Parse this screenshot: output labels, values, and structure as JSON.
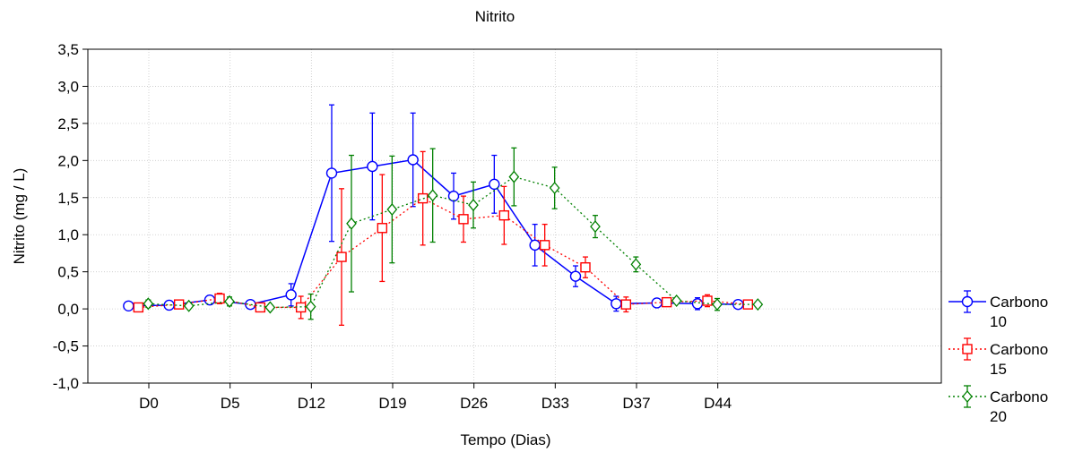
{
  "chart_data": {
    "type": "line",
    "title": "Nitrito",
    "xlabel": "Tempo (Dias)",
    "ylabel": "Nitrito (mg / L)",
    "ylim": [
      -1.0,
      3.5
    ],
    "yticks": [
      "-1,0",
      "-0,5",
      "0,0",
      "0,5",
      "1,0",
      "1,5",
      "2,0",
      "2,5",
      "3,0",
      "3,5"
    ],
    "ytick_values": [
      -1.0,
      -0.5,
      0.0,
      0.5,
      1.0,
      1.5,
      2.0,
      2.5,
      3.0,
      3.5
    ],
    "x_positions": [
      1,
      2,
      3,
      4,
      5,
      6,
      7,
      8,
      9,
      10,
      11,
      12,
      13,
      14,
      15,
      16,
      17,
      18,
      19,
      20
    ],
    "xlim": [
      0,
      21
    ],
    "xtick_labels": [
      "D0",
      "D5",
      "D12",
      "D19",
      "D26",
      "D33",
      "D37",
      "D44"
    ],
    "xtick_positions": [
      1.5,
      3.5,
      5.5,
      7.5,
      9.5,
      11.5,
      13.5,
      15.5
    ],
    "grid": true,
    "legend_position": "right",
    "series": [
      {
        "name": "Carbono\n10",
        "color": "#0000ff",
        "marker": "circle",
        "dash": "solid",
        "x": [
          1,
          2,
          3,
          4,
          5,
          6,
          7,
          8,
          9,
          10,
          11,
          12,
          13,
          14,
          15,
          16,
          17,
          18
        ],
        "y": [
          0.04,
          0.05,
          0.12,
          0.06,
          0.19,
          1.83,
          1.92,
          2.01,
          1.52,
          1.68,
          0.86,
          0.44,
          0.07,
          0.08,
          0.07,
          0.06,
          null,
          null
        ],
        "err": [
          0.02,
          0.02,
          0.06,
          0.02,
          0.15,
          0.92,
          0.72,
          0.63,
          0.31,
          0.39,
          0.28,
          0.14,
          0.1,
          0.02,
          0.08,
          0.03,
          null,
          null
        ]
      },
      {
        "name": "Carbono\n15",
        "color": "#ff0000",
        "marker": "square",
        "dash": "dotted",
        "x": [
          1,
          2,
          3,
          4,
          5,
          6,
          7,
          8,
          9,
          10,
          11,
          12,
          13,
          14,
          15,
          16
        ],
        "y": [
          0.02,
          0.06,
          0.14,
          0.02,
          0.02,
          0.7,
          1.09,
          1.49,
          1.21,
          1.26,
          0.86,
          0.56,
          0.06,
          0.09,
          0.11,
          0.06
        ],
        "err": [
          0.02,
          0.03,
          0.07,
          0.02,
          0.15,
          0.92,
          0.72,
          0.63,
          0.31,
          0.39,
          0.28,
          0.14,
          0.1,
          0.02,
          0.08,
          0.03
        ]
      },
      {
        "name": "Carbono\n20",
        "color": "#008000",
        "marker": "diamond",
        "dash": "dotted",
        "x": [
          1,
          2,
          3,
          4,
          5,
          6,
          7,
          8,
          9,
          10,
          11,
          12,
          13,
          14,
          15,
          16
        ],
        "y": [
          0.07,
          0.04,
          0.1,
          0.02,
          0.03,
          1.15,
          1.34,
          1.53,
          1.4,
          1.78,
          1.63,
          1.11,
          0.6,
          0.11,
          0.06,
          0.06
        ],
        "err": [
          0.05,
          0.02,
          0.06,
          0.02,
          0.17,
          0.92,
          0.72,
          0.63,
          0.31,
          0.39,
          0.28,
          0.15,
          0.1,
          0.02,
          0.08,
          0.03
        ]
      }
    ]
  }
}
